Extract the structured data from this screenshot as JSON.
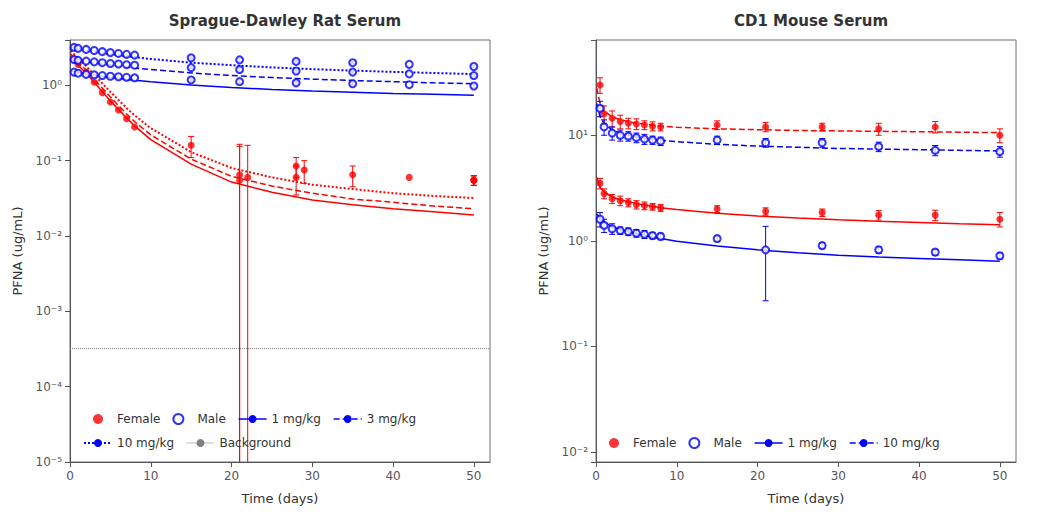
{
  "chart_data": [
    {
      "type": "scatter",
      "title": "Sprague-Dawley Rat Serum",
      "x_label": "Time (days)",
      "y_label": "PFNA (ug/mL)",
      "log": "y",
      "grid": false,
      "legend": "lower left",
      "xlim": [
        0,
        52
      ],
      "xticks": [
        0,
        10,
        20,
        30,
        40,
        50
      ],
      "ylim": [
        1e-05,
        4
      ],
      "yticks": [
        {
          "value": 1e-05,
          "label": "10⁻⁵"
        },
        {
          "value": 0.0001,
          "label": "10⁻⁴"
        },
        {
          "value": 0.001,
          "label": "10⁻³"
        },
        {
          "value": 0.01,
          "label": "10⁻²"
        },
        {
          "value": 0.1,
          "label": "10⁻¹"
        },
        {
          "value": 1,
          "label": "10⁰"
        }
      ],
      "series": [
        {
          "name": "Female",
          "type": "scatter",
          "color": "red",
          "marker": "filled circle",
          "x": [
            0.5,
            1,
            2,
            3,
            4,
            5,
            6,
            7,
            8,
            15,
            21,
            21,
            22,
            28,
            28,
            29,
            35,
            42,
            50,
            50,
            50
          ],
          "values": [
            2.2,
            1.9,
            1.5,
            1.1,
            0.8,
            0.6,
            0.47,
            0.36,
            0.28,
            0.16,
            0.065,
            0.055,
            0.06,
            0.085,
            0.06,
            0.075,
            0.065,
            0.06,
            0.055,
            0.055,
            0.055
          ],
          "errors": [
            0.0,
            0.0,
            0.0,
            0.0,
            0.0,
            0.0,
            0.0,
            0.0,
            0.0,
            0.05,
            0.1,
            0.1,
            0.1,
            0.025,
            0.025,
            0.025,
            0.02,
            0.0,
            0.008,
            0.008,
            0.008
          ]
        },
        {
          "name": "Male",
          "type": "scatter",
          "color": "blue",
          "marker": "open circle",
          "x": [
            0.5,
            1,
            2,
            3,
            4,
            5,
            6,
            7,
            8,
            15,
            21,
            28,
            35,
            42,
            50
          ],
          "values": [
            1.5,
            1.45,
            1.4,
            1.38,
            1.35,
            1.32,
            1.3,
            1.28,
            1.26,
            1.18,
            1.12,
            1.08,
            1.05,
            1.02,
            0.98
          ],
          "errors": [
            0.0,
            0.0,
            0.0,
            0.0,
            0.0,
            0.0,
            0.0,
            0.0,
            0.0,
            0.04,
            0.06,
            0.04,
            0.04,
            0.0,
            0.04
          ]
        },
        {
          "name": "Male",
          "type": "scatter",
          "color": "blue",
          "marker": "open circle",
          "x": [
            0.5,
            1,
            2,
            3,
            4,
            5,
            6,
            7,
            8,
            15,
            21,
            28,
            35,
            42,
            50
          ],
          "values": [
            2.2,
            2.15,
            2.1,
            2.05,
            2.0,
            1.95,
            1.92,
            1.88,
            1.85,
            1.72,
            1.62,
            1.55,
            1.5,
            1.42,
            1.35
          ],
          "errors": [
            0.0,
            0.0,
            0.0,
            0.0,
            0.0,
            0.0,
            0.0,
            0.0,
            0.0,
            0.05,
            0.08,
            0.05,
            0.05,
            0.0,
            0.05
          ]
        },
        {
          "name": "Male",
          "type": "scatter",
          "color": "blue",
          "marker": "open circle",
          "x": [
            0.5,
            1,
            2,
            3,
            4,
            5,
            6,
            7,
            8,
            15,
            21,
            28,
            35,
            42,
            50
          ],
          "values": [
            3.2,
            3.1,
            3.0,
            2.9,
            2.8,
            2.72,
            2.65,
            2.58,
            2.52,
            2.32,
            2.18,
            2.08,
            2.0,
            1.9,
            1.78
          ],
          "errors": [
            0.0,
            0.0,
            0.0,
            0.0,
            0.0,
            0.0,
            0.0,
            0.0,
            0.0,
            0.06,
            0.1,
            0.06,
            0.06,
            0.0,
            0.06
          ]
        },
        {
          "name": "1 mg/kg",
          "type": "line",
          "color": "red",
          "line_style": "solid",
          "x": [
            0.1,
            0.5,
            1,
            2,
            3,
            4,
            5,
            6,
            7,
            8,
            10,
            15,
            20,
            25,
            30,
            35,
            40,
            45,
            50
          ],
          "values": [
            2.4,
            2.1,
            1.85,
            1.45,
            1.1,
            0.82,
            0.62,
            0.48,
            0.37,
            0.29,
            0.19,
            0.09,
            0.052,
            0.038,
            0.03,
            0.026,
            0.023,
            0.021,
            0.019
          ]
        },
        {
          "name": "1 mg/kg",
          "type": "line",
          "color": "blue",
          "line_style": "solid",
          "x": [
            0.1,
            0.5,
            1,
            2,
            3,
            4,
            5,
            6,
            7,
            8,
            10,
            15,
            20,
            25,
            30,
            35,
            40,
            45,
            50
          ],
          "values": [
            1.55,
            1.52,
            1.48,
            1.42,
            1.37,
            1.32,
            1.28,
            1.24,
            1.2,
            1.17,
            1.12,
            1.01,
            0.94,
            0.88,
            0.84,
            0.81,
            0.78,
            0.76,
            0.74
          ]
        },
        {
          "name": "3 mg/kg",
          "type": "line",
          "color": "red",
          "line_style": "dashed",
          "x": [
            0.1,
            0.5,
            1,
            2,
            3,
            4,
            5,
            6,
            7,
            8,
            10,
            15,
            20,
            25,
            30,
            35,
            40,
            45,
            50
          ],
          "values": [
            2.6,
            2.3,
            2.0,
            1.6,
            1.2,
            0.92,
            0.7,
            0.54,
            0.42,
            0.33,
            0.22,
            0.105,
            0.062,
            0.046,
            0.037,
            0.031,
            0.028,
            0.025,
            0.023
          ]
        },
        {
          "name": "3 mg/kg",
          "type": "line",
          "color": "blue",
          "line_style": "dashed",
          "x": [
            0.1,
            0.5,
            1,
            2,
            3,
            4,
            5,
            6,
            7,
            8,
            10,
            15,
            20,
            25,
            30,
            35,
            40,
            45,
            50
          ],
          "values": [
            2.25,
            2.2,
            2.14,
            2.06,
            1.98,
            1.92,
            1.86,
            1.8,
            1.75,
            1.7,
            1.62,
            1.46,
            1.35,
            1.27,
            1.21,
            1.16,
            1.12,
            1.08,
            1.05
          ]
        },
        {
          "name": "10 mg/kg",
          "type": "line",
          "color": "red",
          "line_style": "dotted",
          "x": [
            0.1,
            0.5,
            1,
            2,
            3,
            4,
            5,
            6,
            7,
            8,
            10,
            15,
            20,
            25,
            30,
            35,
            40,
            45,
            50
          ],
          "values": [
            2.9,
            2.6,
            2.3,
            1.8,
            1.38,
            1.06,
            0.82,
            0.64,
            0.5,
            0.4,
            0.27,
            0.13,
            0.08,
            0.06,
            0.048,
            0.042,
            0.037,
            0.034,
            0.032
          ]
        },
        {
          "name": "10 mg/kg",
          "type": "line",
          "color": "blue",
          "line_style": "dotted",
          "x": [
            0.1,
            0.5,
            1,
            2,
            3,
            4,
            5,
            6,
            7,
            8,
            10,
            15,
            20,
            25,
            30,
            35,
            40,
            45,
            50
          ],
          "values": [
            3.25,
            3.18,
            3.1,
            2.96,
            2.82,
            2.7,
            2.6,
            2.52,
            2.44,
            2.37,
            2.24,
            2.0,
            1.85,
            1.73,
            1.64,
            1.57,
            1.51,
            1.46,
            1.41
          ]
        },
        {
          "name": "Background",
          "type": "hline",
          "color": "grey",
          "line_style": "dotted",
          "values": [
            0.00032
          ]
        }
      ]
    },
    {
      "type": "scatter",
      "title": "CD1 Mouse Serum",
      "x_label": "Time (days)",
      "y_label": "PFNA (ug/mL)",
      "log": "y",
      "grid": false,
      "legend": "lower left",
      "xlim": [
        0,
        52
      ],
      "xticks": [
        0,
        10,
        20,
        30,
        40,
        50
      ],
      "ylim": [
        0.008,
        80
      ],
      "yticks": [
        {
          "value": 0.01,
          "label": "10⁻²"
        },
        {
          "value": 0.1,
          "label": "10⁻¹"
        },
        {
          "value": 1,
          "label": "10⁰"
        },
        {
          "value": 10,
          "label": "10¹"
        }
      ],
      "series": [
        {
          "name": "Female",
          "type": "scatter",
          "color": "red",
          "marker": "filled circle",
          "x": [
            0.5,
            1,
            2,
            3,
            4,
            5,
            6,
            7,
            8,
            15,
            21,
            28,
            35,
            42,
            50
          ],
          "values": [
            3.5,
            2.8,
            2.5,
            2.4,
            2.3,
            2.2,
            2.15,
            2.1,
            2.05,
            2.0,
            1.9,
            1.85,
            1.75,
            1.75,
            1.6
          ],
          "errors": [
            0.4,
            0.3,
            0.25,
            0.25,
            0.2,
            0.2,
            0.18,
            0.15,
            0.15,
            0.15,
            0.15,
            0.15,
            0.18,
            0.2,
            0.25
          ]
        },
        {
          "name": "Male",
          "type": "scatter",
          "color": "blue",
          "marker": "open circle",
          "x": [
            0.5,
            1,
            2,
            3,
            4,
            5,
            6,
            7,
            8,
            15,
            21,
            28,
            35,
            42,
            50
          ],
          "values": [
            1.6,
            1.4,
            1.3,
            1.25,
            1.22,
            1.18,
            1.15,
            1.12,
            1.1,
            1.05,
            0.82,
            0.9,
            0.82,
            0.78,
            0.72
          ],
          "errors": [
            0.25,
            0.2,
            0.15,
            0.1,
            0.1,
            0.1,
            0.1,
            0.08,
            0.08,
            0.06,
            0.55,
            0.06,
            0.06,
            0.05,
            0.05
          ]
        },
        {
          "name": "Female",
          "type": "scatter",
          "color": "red",
          "marker": "filled circle",
          "x": [
            0.5,
            1,
            2,
            3,
            4,
            5,
            6,
            7,
            8,
            15,
            21,
            28,
            35,
            42,
            50
          ],
          "values": [
            30.0,
            16.0,
            14.5,
            13.5,
            13.0,
            12.8,
            12.5,
            12.2,
            12.0,
            12.5,
            12.0,
            12.0,
            11.5,
            12.0,
            10.0
          ],
          "errors": [
            5.0,
            3.0,
            2.5,
            2.0,
            1.5,
            1.5,
            1.2,
            1.2,
            1.0,
            1.2,
            1.2,
            1.0,
            1.5,
            1.5,
            1.5
          ]
        },
        {
          "name": "Male",
          "type": "scatter",
          "color": "blue",
          "marker": "open circle",
          "x": [
            0.5,
            1,
            2,
            3,
            4,
            5,
            6,
            7,
            8,
            15,
            21,
            28,
            35,
            42,
            50
          ],
          "values": [
            18.0,
            12.0,
            10.5,
            10.0,
            9.8,
            9.5,
            9.2,
            9.0,
            8.8,
            9.0,
            8.5,
            8.5,
            7.8,
            7.2,
            7.0
          ],
          "errors": [
            3.0,
            2.0,
            1.5,
            1.2,
            1.0,
            1.0,
            1.0,
            0.8,
            0.8,
            0.8,
            0.8,
            0.8,
            0.8,
            0.8,
            0.8
          ]
        },
        {
          "name": "1 mg/kg",
          "type": "line",
          "color": "red",
          "line_style": "solid",
          "x": [
            0.1,
            0.5,
            1,
            2,
            3,
            4,
            5,
            6,
            7,
            8,
            10,
            15,
            20,
            25,
            30,
            35,
            40,
            45,
            50
          ],
          "values": [
            4.0,
            3.2,
            2.9,
            2.6,
            2.45,
            2.35,
            2.25,
            2.18,
            2.12,
            2.06,
            1.98,
            1.82,
            1.72,
            1.64,
            1.58,
            1.53,
            1.49,
            1.45,
            1.42
          ]
        },
        {
          "name": "1 mg/kg",
          "type": "line",
          "color": "blue",
          "line_style": "solid",
          "x": [
            0.1,
            0.5,
            1,
            2,
            3,
            4,
            5,
            6,
            7,
            8,
            10,
            15,
            20,
            25,
            30,
            35,
            40,
            45,
            50
          ],
          "values": [
            1.8,
            1.62,
            1.5,
            1.36,
            1.28,
            1.22,
            1.17,
            1.12,
            1.08,
            1.05,
            0.99,
            0.89,
            0.82,
            0.77,
            0.73,
            0.7,
            0.68,
            0.66,
            0.64
          ]
        },
        {
          "name": "10 mg/kg",
          "type": "line",
          "color": "red",
          "line_style": "dashed",
          "x": [
            0.1,
            0.5,
            1,
            2,
            3,
            4,
            5,
            6,
            7,
            8,
            10,
            15,
            20,
            25,
            30,
            35,
            40,
            45,
            50
          ],
          "values": [
            28.0,
            20.0,
            17.0,
            15.0,
            14.0,
            13.5,
            13.0,
            12.8,
            12.5,
            12.2,
            11.9,
            11.5,
            11.3,
            11.1,
            11.0,
            10.9,
            10.8,
            10.7,
            10.6
          ]
        },
        {
          "name": "10 mg/kg",
          "type": "line",
          "color": "blue",
          "line_style": "dashed",
          "x": [
            0.1,
            0.5,
            1,
            2,
            3,
            4,
            5,
            6,
            7,
            8,
            10,
            15,
            20,
            25,
            30,
            35,
            40,
            45,
            50
          ],
          "values": [
            20.0,
            15.0,
            13.0,
            11.2,
            10.5,
            10.0,
            9.7,
            9.4,
            9.2,
            9.0,
            8.7,
            8.2,
            7.9,
            7.7,
            7.5,
            7.4,
            7.3,
            7.2,
            7.1
          ]
        }
      ]
    }
  ]
}
